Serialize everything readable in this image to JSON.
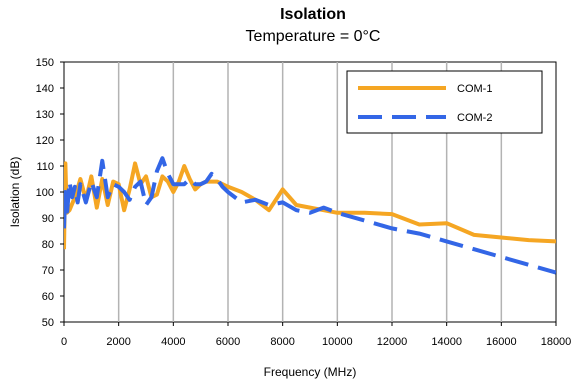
{
  "chart_data": {
    "type": "line",
    "title": "Isolation",
    "subtitle": "Temperature = 0°C",
    "xlabel": "Frequency (MHz)",
    "ylabel": "Isolation (dB)",
    "xlim": [
      0,
      18000
    ],
    "ylim": [
      50,
      150
    ],
    "xticks": [
      "0",
      "2000",
      "4000",
      "6000",
      "8000",
      "10000",
      "12000",
      "14000",
      "16000",
      "18000"
    ],
    "yticks": [
      "50",
      "60",
      "70",
      "80",
      "90",
      "100",
      "110",
      "120",
      "130",
      "140",
      "150"
    ],
    "x_gridlines": true,
    "y_gridlines": false,
    "legend_position": "top-right",
    "series": [
      {
        "name": "COM-1",
        "color": "#f5a623",
        "style": "solid",
        "x": [
          0,
          50,
          100,
          200,
          400,
          600,
          800,
          1000,
          1200,
          1400,
          1600,
          1800,
          2000,
          2200,
          2400,
          2600,
          2800,
          3000,
          3200,
          3400,
          3600,
          3800,
          4000,
          4200,
          4400,
          4600,
          4800,
          5000,
          5200,
          5400,
          5600,
          5800,
          6000,
          6500,
          7000,
          7500,
          8000,
          8500,
          9000,
          9500,
          10000,
          11000,
          12000,
          13000,
          14000,
          15000,
          16000,
          17000,
          18000
        ],
        "y": [
          78,
          111,
          92,
          93,
          98,
          105,
          97,
          106,
          94,
          105,
          95,
          104,
          103,
          93,
          101,
          111,
          103,
          106,
          98,
          99,
          106,
          104,
          100,
          104,
          110,
          105,
          101,
          103,
          104,
          104,
          104,
          103,
          102,
          100,
          97,
          93,
          101,
          95,
          94,
          93,
          92,
          92,
          91.5,
          87.5,
          88,
          83.5,
          82.5,
          81.5,
          81
        ]
      },
      {
        "name": "COM-2",
        "color": "#3366e6",
        "style": "dashed",
        "x": [
          0,
          50,
          100,
          200,
          300,
          400,
          500,
          600,
          800,
          1000,
          1200,
          1400,
          1600,
          1800,
          2000,
          2200,
          2400,
          2600,
          2800,
          3000,
          3200,
          3400,
          3600,
          3800,
          4000,
          4200,
          4400,
          4600,
          4800,
          5000,
          5200,
          5400,
          5600,
          5800,
          6000,
          6500,
          7000,
          7500,
          8000,
          8500,
          9000,
          9500,
          10000,
          11000,
          12000,
          13000,
          14000,
          15000,
          16000,
          17000,
          18000
        ],
        "y": [
          86,
          100,
          90,
          104,
          98,
          102,
          96,
          103,
          96,
          104,
          98,
          112,
          98,
          103,
          102,
          100,
          97,
          102,
          104,
          95,
          98,
          108,
          113,
          107,
          103,
          103,
          103,
          105,
          103,
          103,
          104,
          107,
          105,
          102,
          100,
          96,
          97,
          95,
          96,
          93,
          92,
          94,
          92,
          89,
          86,
          84,
          81,
          78,
          75,
          72,
          69
        ]
      }
    ]
  }
}
